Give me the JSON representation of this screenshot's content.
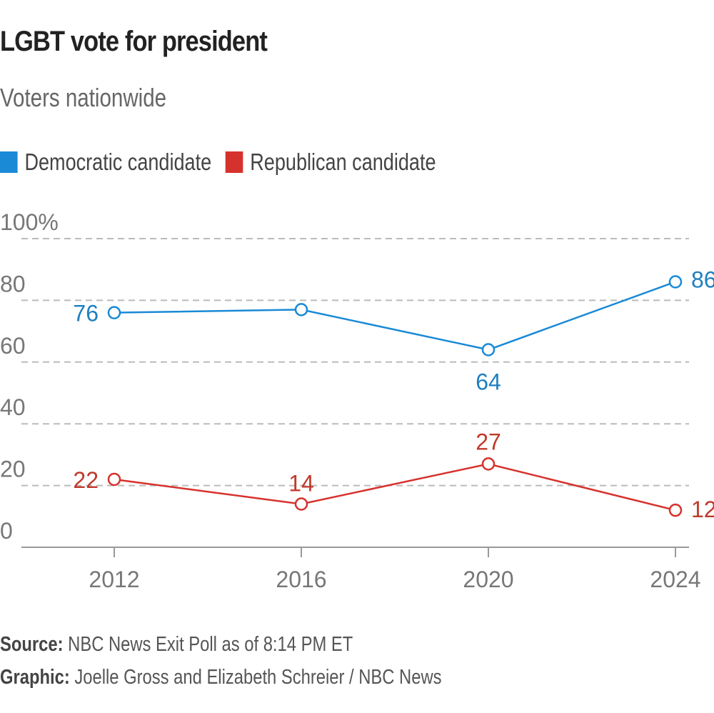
{
  "header": {
    "title": "LGBT vote for president",
    "subtitle": "Voters nationwide"
  },
  "legend": [
    {
      "label": "Democratic candidate",
      "color": "#1a8ad6"
    },
    {
      "label": "Republican candidate",
      "color": "#d6322d"
    }
  ],
  "footer": {
    "source_label": "Source:",
    "source_text": "NBC News Exit Poll as of 8:14 PM ET",
    "credit_label": "Graphic:",
    "credit_text": "Joelle Gross and Elizabeth Schreier / NBC News"
  },
  "chart_data": {
    "type": "line",
    "title": "LGBT vote for president",
    "subtitle": "Voters nationwide",
    "x": [
      "2012",
      "2016",
      "2020",
      "2024"
    ],
    "ylim": [
      0,
      100
    ],
    "yticks": [
      0,
      20,
      40,
      60,
      80,
      100
    ],
    "ytick_labels": [
      "0",
      "20",
      "40",
      "60",
      "80",
      "100%"
    ],
    "grid": true,
    "legend_position": "top-left",
    "series": [
      {
        "name": "Democratic candidate",
        "color": "#1a8ad6",
        "values": [
          76,
          77,
          64,
          86
        ],
        "labels": [
          "76",
          "",
          "64",
          "86"
        ]
      },
      {
        "name": "Republican candidate",
        "color": "#d6322d",
        "values": [
          22,
          14,
          27,
          12
        ],
        "labels": [
          "22",
          "14",
          "27",
          "12"
        ]
      }
    ]
  }
}
